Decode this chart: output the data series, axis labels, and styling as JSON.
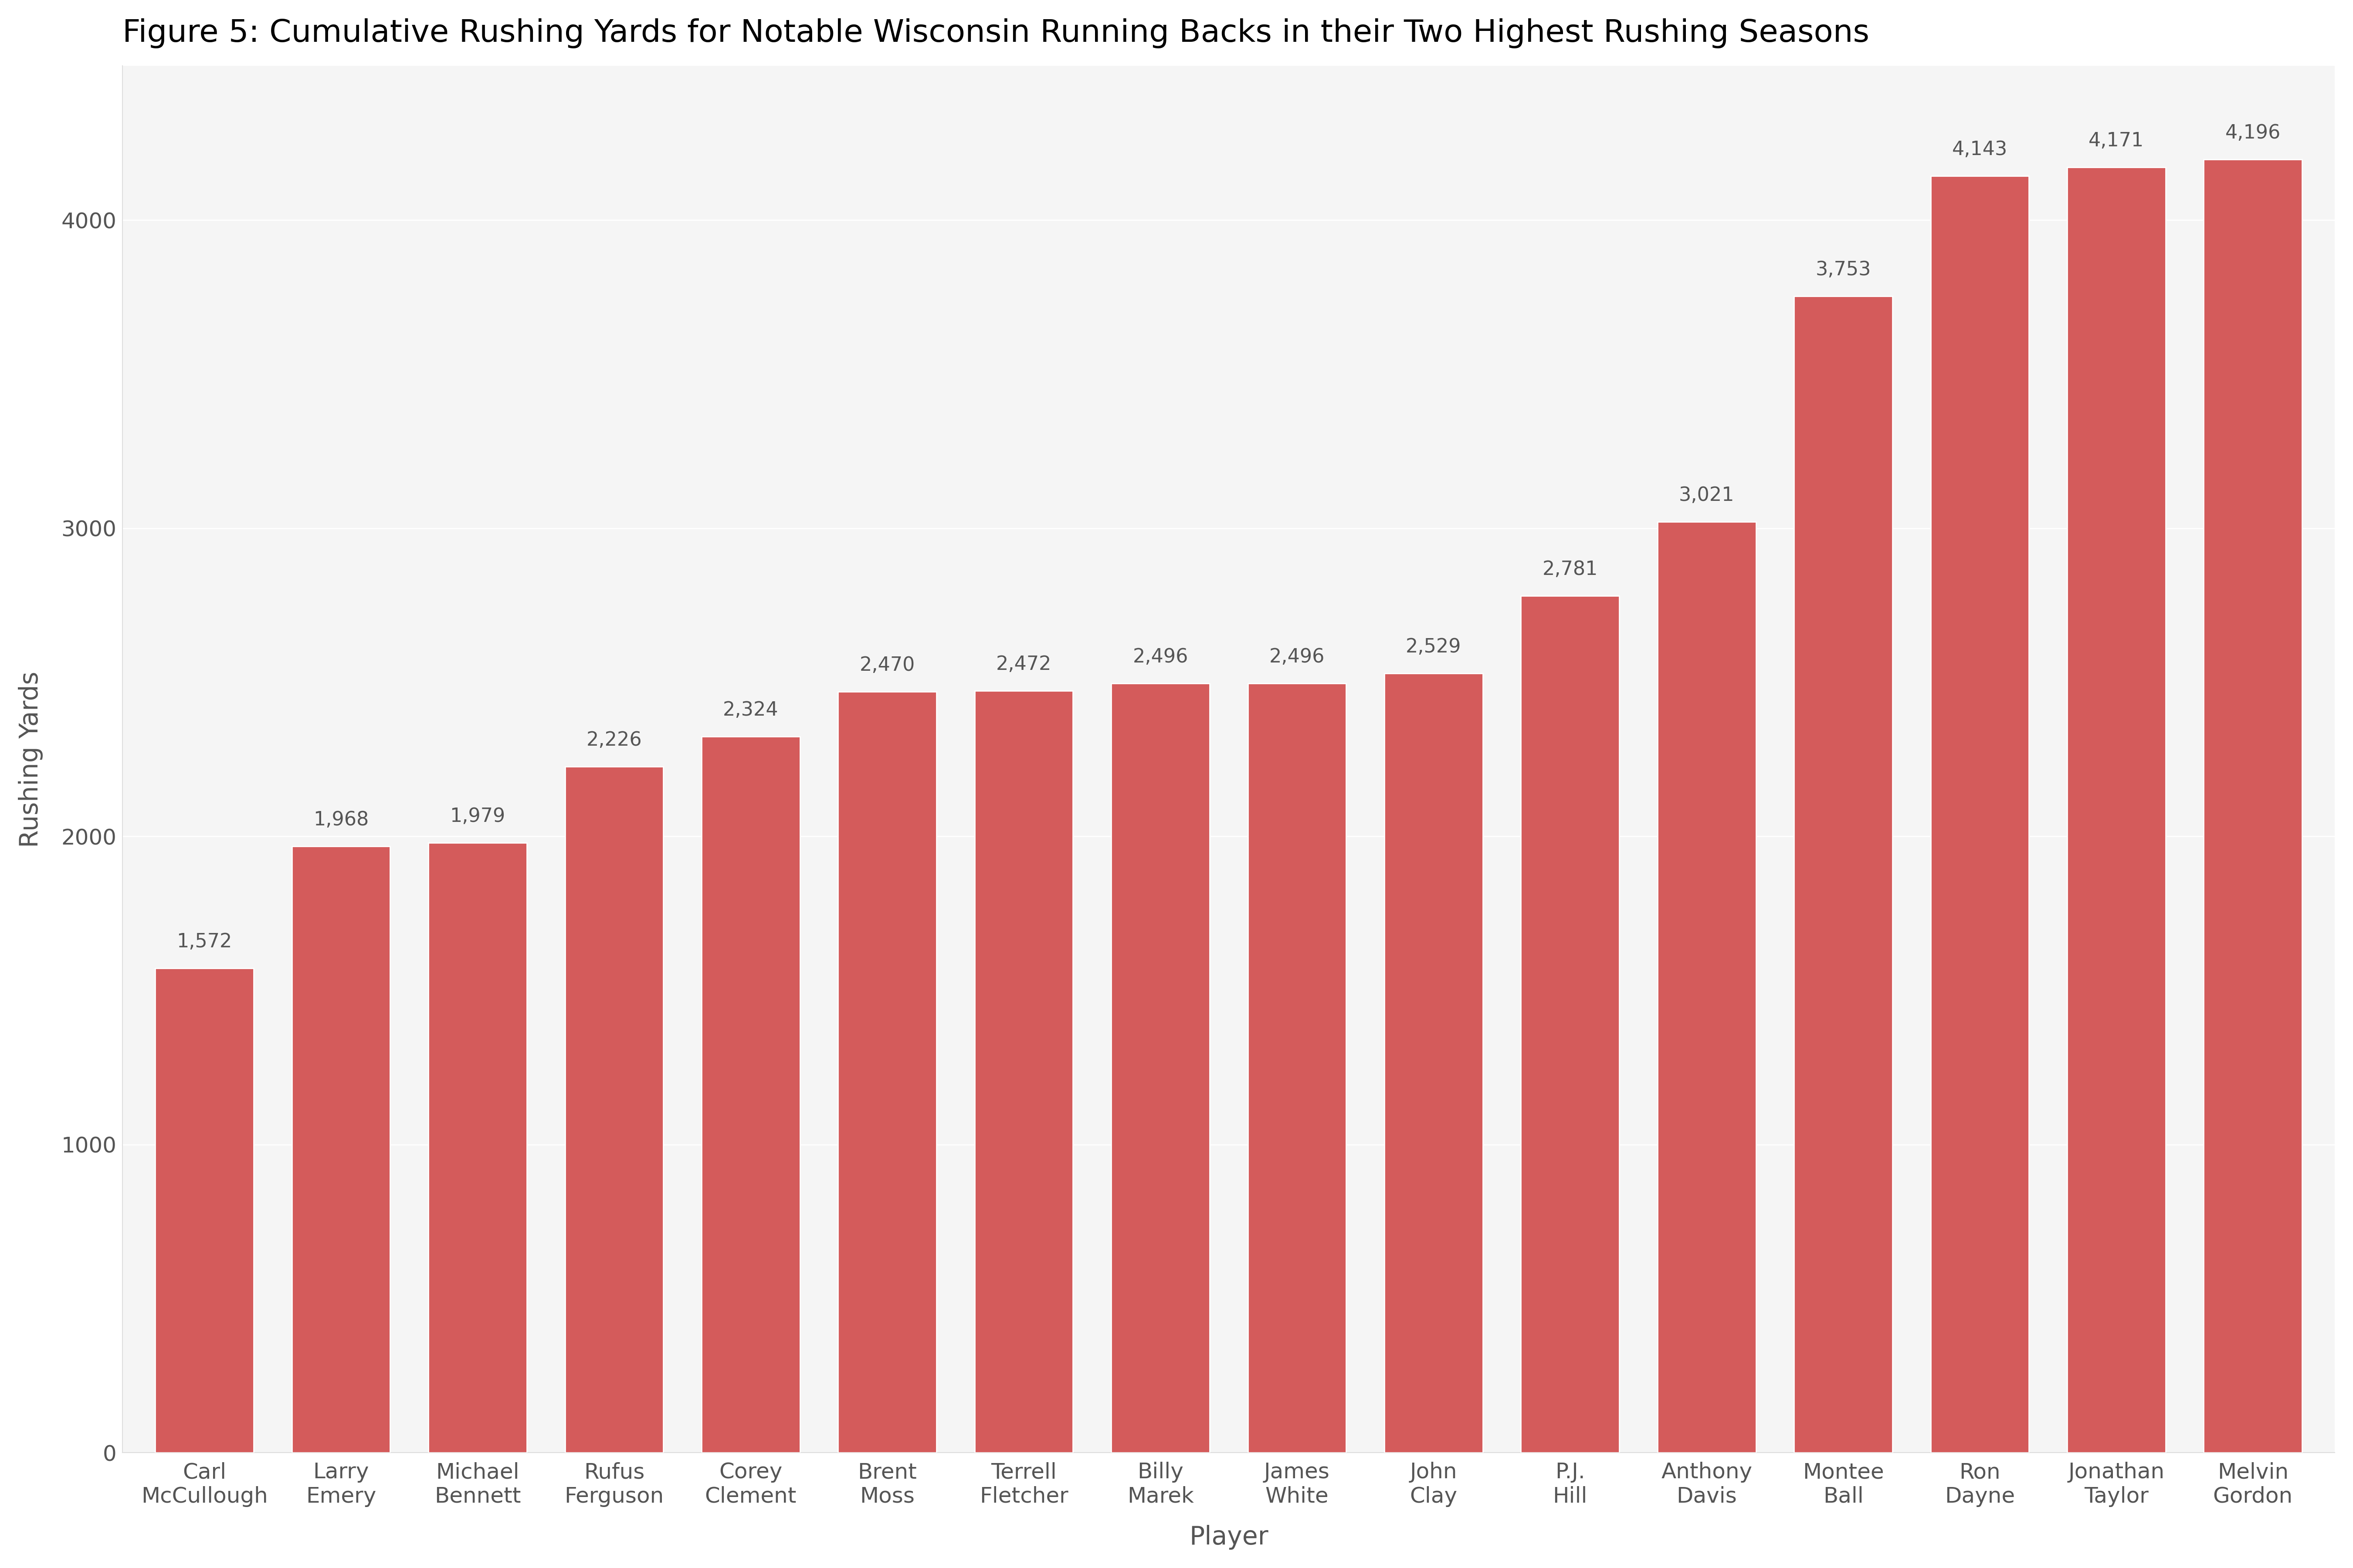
{
  "title": "Figure 5: Cumulative Rushing Yards for Notable Wisconsin Running Backs in their Two Highest Rushing Seasons",
  "xlabel": "Player",
  "ylabel": "Rushing Yards",
  "bar_color": "#d45b5b",
  "background_color": "#ffffff",
  "panel_color": "#f5f5f5",
  "text_color": "#555555",
  "players": [
    "Carl\nMcCullough",
    "Larry\nEmery",
    "Michael\nBennett",
    "Rufus\nFerguson",
    "Corey\nClement",
    "Brent\nMoss",
    "Terrell\nFletcher",
    "Billy\nMarek",
    "James\nWhite",
    "John\nClay",
    "P.J.\nHill",
    "Anthony\nDavis",
    "Montee\nBall",
    "Ron\nDayne",
    "Jonathan\nTaylor",
    "Melvin\nGordon"
  ],
  "values": [
    1572,
    1968,
    1979,
    2226,
    2324,
    2470,
    2472,
    2496,
    2496,
    2529,
    2781,
    3021,
    3753,
    4143,
    4171,
    4196
  ],
  "ylim": [
    0,
    4500
  ],
  "yticks": [
    0,
    1000,
    2000,
    3000,
    4000
  ],
  "title_fontsize": 52,
  "axis_label_fontsize": 42,
  "tick_fontsize": 36,
  "value_fontsize": 32,
  "bar_width": 0.72
}
